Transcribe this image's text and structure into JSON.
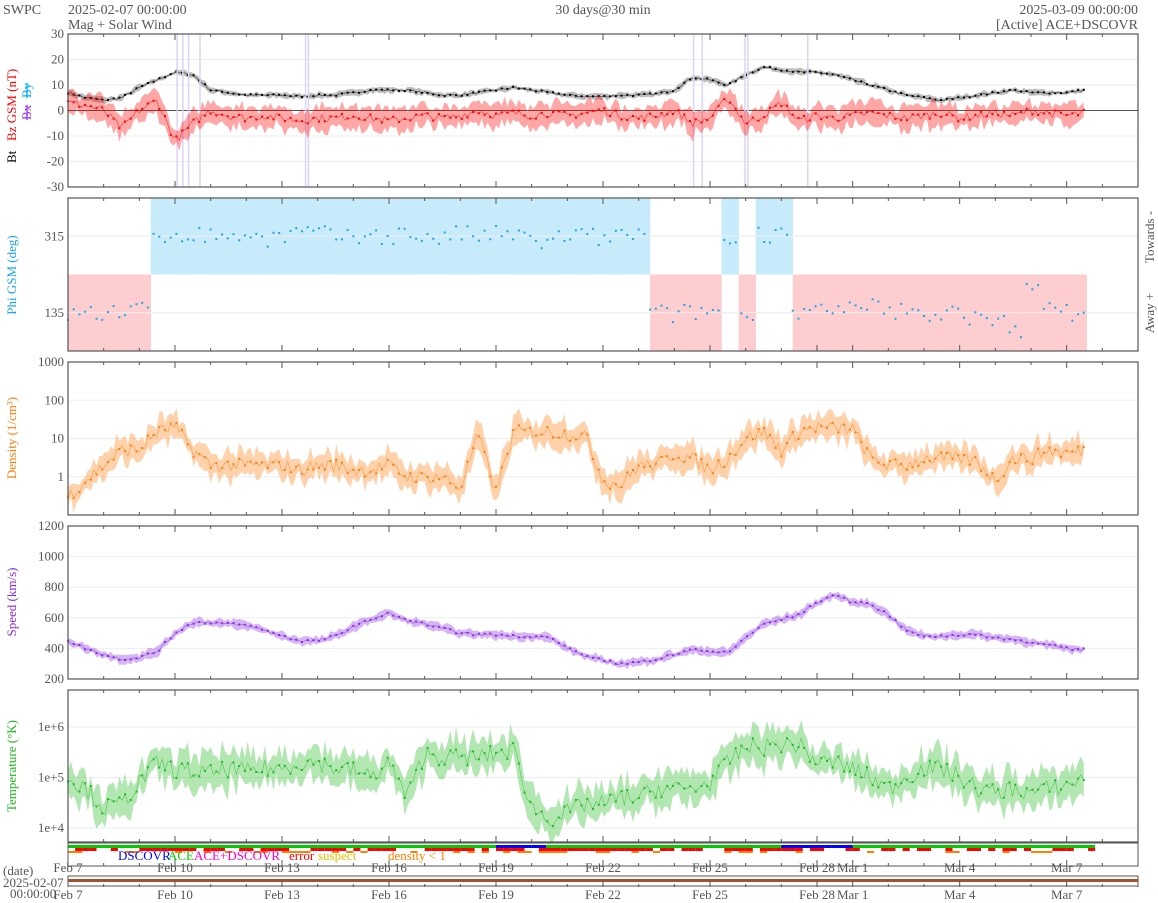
{
  "header": {
    "org": "SWPC",
    "start": "2025-02-07 00:00:00",
    "subtitle": "Mag + Solar Wind",
    "span": "30 days@30 min",
    "end": "2025-03-09 00:00:00",
    "source": "[Active] ACE+DSCOVR"
  },
  "labels": {
    "bt": "Bt",
    "bz": "Bz GSM (nT)",
    "bx": "Bx",
    "by": "By",
    "phi": "Phi GSM (deg)",
    "towards": "Towards -",
    "away": "Away +",
    "density": "Density (1/cm³)",
    "speed": "Speed (km/s)",
    "temperature": "Temperature (°K)"
  },
  "legend": {
    "dscovr": "DSCOVR",
    "ace": "ACE",
    "ace_dscovr": "ACE+DSCOVR",
    "error": "error",
    "suspect": "suspect",
    "density_lt1": "density < 1"
  },
  "date_axis": {
    "label": "(date)",
    "start_date": "2025-02-07",
    "start_time": "00:00:00"
  },
  "colors": {
    "bt": "#000000",
    "bz": "#ff0000",
    "bx": "#9b30ff",
    "by": "#00aaff",
    "phi": "#1aa6e8",
    "towards_bg": "#c8ebfb",
    "away_bg": "#fdcdd0",
    "density": "#ff7f0e",
    "speed": "#8a2be2",
    "temperature": "#22b922",
    "dscovr": "#0000ff",
    "ace": "#00cc00",
    "ace_dscovr": "#ff00cc",
    "error": "#ff0000",
    "suspect": "#e6c000",
    "density_lt1": "#ff7f00"
  },
  "chart_data": {
    "type": "line",
    "x_unit": "days since 2025-02-07 00:00",
    "x_step_days": 0.5,
    "x_range_days": [
      0,
      30
    ],
    "x_ticks": [
      {
        "day": 0,
        "label": "Feb 7"
      },
      {
        "day": 3,
        "label": "Feb 10"
      },
      {
        "day": 6,
        "label": "Feb 13"
      },
      {
        "day": 9,
        "label": "Feb 16"
      },
      {
        "day": 12,
        "label": "Feb 19"
      },
      {
        "day": 15,
        "label": "Feb 22"
      },
      {
        "day": 18,
        "label": "Feb 25"
      },
      {
        "day": 21,
        "label": "Feb 28"
      },
      {
        "day": 22,
        "label": "Mar 1"
      },
      {
        "day": 25,
        "label": "Mar 4"
      },
      {
        "day": 28,
        "label": "Mar 7"
      }
    ],
    "panels": [
      {
        "name": "mag",
        "ylabel": "Bt / Bz GSM (nT)",
        "scale": "linear",
        "ylim": [
          -30,
          30
        ],
        "yticks": [
          {
            "v": 30,
            "label": "30"
          },
          {
            "v": 20,
            "label": "20"
          },
          {
            "v": 10,
            "label": "10"
          },
          {
            "v": 0,
            "label": "0"
          },
          {
            "v": -10,
            "label": "-10"
          },
          {
            "v": -20,
            "label": "-20"
          },
          {
            "v": -30,
            "label": "-30"
          }
        ],
        "series": [
          {
            "name": "Bt",
            "values": [
              7,
              5,
              4,
              5,
              9,
              12,
              15,
              14,
              8,
              7,
              6,
              6,
              6,
              5.5,
              6,
              6,
              7,
              8,
              8,
              8,
              7,
              6,
              6,
              7,
              8,
              9,
              8,
              7,
              6,
              5.5,
              5.5,
              6,
              6,
              6.5,
              8,
              13,
              12,
              10,
              14,
              17,
              16,
              15,
              15,
              14,
              12,
              10,
              8,
              6,
              5,
              4,
              5,
              6,
              7,
              8,
              7,
              7,
              7,
              8
            ]
          },
          {
            "name": "Bz",
            "values": [
              3,
              2,
              0,
              -7,
              0,
              4,
              -12,
              -5,
              0,
              -2,
              -3,
              -2,
              -3,
              -4,
              -3,
              -3,
              -2,
              -3,
              -4,
              -3,
              -2,
              -3,
              -2,
              0,
              -2,
              -1,
              -2,
              -1,
              -2,
              -1,
              0,
              -2,
              -3,
              -2,
              0,
              -5,
              -3,
              5,
              -5,
              -2,
              3,
              -4,
              -2,
              -3,
              -2,
              -1,
              -2,
              -3,
              -2,
              -1,
              -3,
              -2,
              -1,
              -2,
              0,
              -1,
              -2,
              -1
            ]
          }
        ]
      },
      {
        "name": "phi",
        "ylabel": "Phi GSM (deg)",
        "scale": "linear",
        "ylim": [
          45,
          405
        ],
        "yticks": [
          {
            "v": 315,
            "label": "315"
          },
          {
            "v": 135,
            "label": "135"
          }
        ],
        "series": [
          {
            "name": "Phi",
            "values": [
              130,
              135,
              130,
              140,
              140,
              315,
              320,
              320,
              315,
              320,
              315,
              310,
              315,
              325,
              320,
              315,
              310,
              320,
              315,
              320,
              315,
              310,
              320,
              315,
              320,
              315,
              310,
              300,
              315,
              315,
              310,
              315,
              320,
              135,
              130,
              135,
              140,
              300,
              135,
              320,
              330,
              135,
              140,
              135,
              140,
              150,
              135,
              140,
              130,
              135,
              140,
              120,
              110,
              95,
              210,
              140,
              135,
              135
            ]
          }
        ]
      },
      {
        "name": "density",
        "ylabel": "Density (1/cm³)",
        "scale": "log",
        "ylim": [
          0.1,
          1000
        ],
        "yticks": [
          {
            "v": 1000,
            "label": "1000"
          },
          {
            "v": 100,
            "label": "100"
          },
          {
            "v": 10,
            "label": "10"
          },
          {
            "v": 1,
            "label": "1"
          }
        ],
        "series": [
          {
            "name": "Density",
            "values": [
              0.3,
              0.8,
              2,
              5,
              5,
              15,
              20,
              5,
              2,
              2,
              2,
              2,
              2,
              1.5,
              2,
              2,
              1.5,
              1.5,
              2,
              1,
              1,
              1,
              0.5,
              13,
              0.4,
              15,
              15,
              15,
              13,
              12,
              0.8,
              0.6,
              2,
              2,
              4,
              3,
              1.5,
              3,
              10,
              15,
              5,
              15,
              20,
              18,
              18,
              3,
              2,
              2,
              3,
              3,
              3,
              2.5,
              0.8,
              3,
              3,
              5,
              4,
              5
            ]
          }
        ]
      },
      {
        "name": "speed",
        "ylabel": "Speed (km/s)",
        "scale": "linear",
        "ylim": [
          200,
          1200
        ],
        "yticks": [
          {
            "v": 1200,
            "label": "1200"
          },
          {
            "v": 1000,
            "label": "1000"
          },
          {
            "v": 800,
            "label": "800"
          },
          {
            "v": 600,
            "label": "600"
          },
          {
            "v": 400,
            "label": "400"
          },
          {
            "v": 200,
            "label": "200"
          }
        ],
        "series": [
          {
            "name": "Speed",
            "values": [
              450,
              400,
              360,
              330,
              340,
              380,
              500,
              570,
              570,
              560,
              550,
              520,
              480,
              450,
              450,
              480,
              540,
              590,
              630,
              580,
              560,
              530,
              500,
              490,
              490,
              480,
              480,
              470,
              400,
              350,
              320,
              300,
              310,
              330,
              360,
              390,
              380,
              370,
              470,
              560,
              590,
              620,
              700,
              750,
              700,
              690,
              620,
              520,
              480,
              480,
              490,
              490,
              470,
              460,
              440,
              420,
              400,
              390
            ]
          }
        ]
      },
      {
        "name": "temperature",
        "ylabel": "Temperature (°K)",
        "scale": "log",
        "ylim": [
          5300,
          5400000
        ],
        "yticks": [
          {
            "v": 1000000,
            "label": "1e+6"
          },
          {
            "v": 100000,
            "label": "1e+5"
          },
          {
            "v": 10000,
            "label": "1e+4"
          }
        ],
        "series": [
          {
            "name": "Temperature",
            "values": [
              100000,
              60000,
              25000,
              30000,
              80000,
              200000,
              140000,
              130000,
              120000,
              150000,
              130000,
              150000,
              150000,
              200000,
              200000,
              150000,
              140000,
              100000,
              200000,
              40000,
              300000,
              250000,
              250000,
              250000,
              300000,
              350000,
              25000,
              15000,
              20000,
              30000,
              30000,
              40000,
              40000,
              60000,
              60000,
              60000,
              80000,
              200000,
              400000,
              400000,
              450000,
              450000,
              200000,
              200000,
              150000,
              100000,
              60000,
              100000,
              150000,
              150000,
              100000,
              60000,
              50000,
              60000,
              50000,
              60000,
              70000,
              100000
            ]
          }
        ]
      }
    ]
  }
}
